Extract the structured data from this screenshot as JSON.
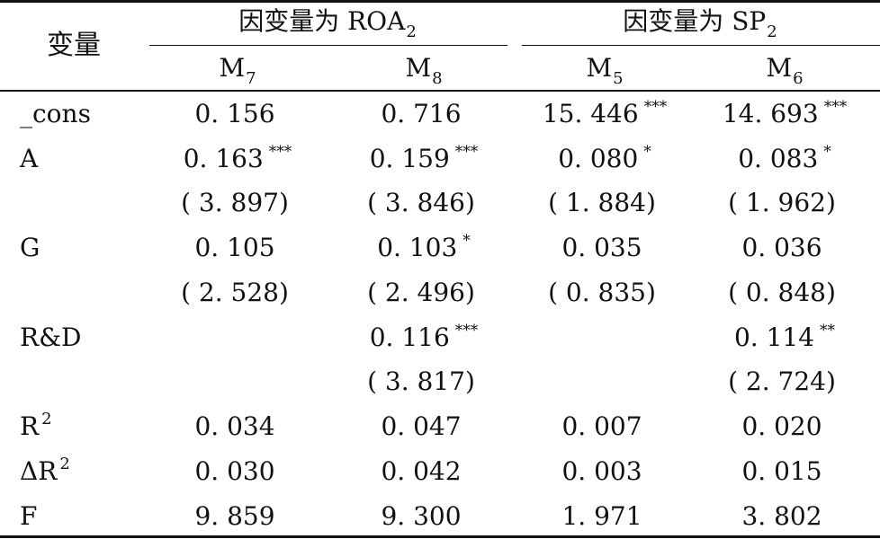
{
  "header": {
    "variable_col": "变量",
    "group1": {
      "prefix": "因变量为 ROA",
      "sub": "2"
    },
    "group2": {
      "prefix": "因变量为 SP",
      "sub": "2"
    },
    "models": [
      {
        "base": "M",
        "sub": "7"
      },
      {
        "base": "M",
        "sub": "8"
      },
      {
        "base": "M",
        "sub": "5"
      },
      {
        "base": "M",
        "sub": "6"
      }
    ]
  },
  "rows": [
    {
      "label": "_cons",
      "label_sup": "",
      "cells": [
        {
          "v": "0. 156",
          "s": ""
        },
        {
          "v": "0. 716",
          "s": ""
        },
        {
          "v": "15. 446",
          "s": "***"
        },
        {
          "v": "14. 693",
          "s": "***"
        }
      ]
    },
    {
      "label": "A",
      "label_sup": "",
      "cells": [
        {
          "v": "0. 163",
          "s": "***"
        },
        {
          "v": "0. 159",
          "s": "***"
        },
        {
          "v": "0. 080",
          "s": "*"
        },
        {
          "v": "0. 083",
          "s": "*"
        }
      ]
    },
    {
      "label": "",
      "label_sup": "",
      "cells": [
        {
          "v": "( 3. 897)",
          "s": ""
        },
        {
          "v": "( 3. 846)",
          "s": ""
        },
        {
          "v": "( 1. 884)",
          "s": ""
        },
        {
          "v": "( 1. 962)",
          "s": ""
        }
      ]
    },
    {
      "label": "G",
      "label_sup": "",
      "cells": [
        {
          "v": "0. 105",
          "s": ""
        },
        {
          "v": "0. 103",
          "s": "*"
        },
        {
          "v": "0. 035",
          "s": ""
        },
        {
          "v": "0. 036",
          "s": ""
        }
      ]
    },
    {
      "label": "",
      "label_sup": "",
      "cells": [
        {
          "v": "( 2. 528)",
          "s": ""
        },
        {
          "v": "( 2. 496)",
          "s": ""
        },
        {
          "v": "( 0. 835)",
          "s": ""
        },
        {
          "v": "( 0. 848)",
          "s": ""
        }
      ]
    },
    {
      "label": "R&D",
      "label_sup": "",
      "cells": [
        {
          "v": "",
          "s": ""
        },
        {
          "v": "0. 116",
          "s": "***"
        },
        {
          "v": "",
          "s": ""
        },
        {
          "v": "0. 114",
          "s": "**"
        }
      ]
    },
    {
      "label": "",
      "label_sup": "",
      "cells": [
        {
          "v": "",
          "s": ""
        },
        {
          "v": "( 3. 817)",
          "s": ""
        },
        {
          "v": "",
          "s": ""
        },
        {
          "v": "( 2. 724)",
          "s": ""
        }
      ]
    },
    {
      "label": "R",
      "label_sup": "2",
      "cells": [
        {
          "v": "0. 034",
          "s": ""
        },
        {
          "v": "0. 047",
          "s": ""
        },
        {
          "v": "0. 007",
          "s": ""
        },
        {
          "v": "0. 020",
          "s": ""
        }
      ]
    },
    {
      "label": "ΔR",
      "label_sup": "2",
      "cells": [
        {
          "v": "0. 030",
          "s": ""
        },
        {
          "v": "0. 042",
          "s": ""
        },
        {
          "v": "0. 003",
          "s": ""
        },
        {
          "v": "0. 015",
          "s": ""
        }
      ]
    },
    {
      "label": "F",
      "label_sup": "",
      "cells": [
        {
          "v": "9. 859",
          "s": ""
        },
        {
          "v": "9. 300",
          "s": ""
        },
        {
          "v": "1. 971",
          "s": ""
        },
        {
          "v": "3. 802",
          "s": ""
        }
      ]
    }
  ]
}
